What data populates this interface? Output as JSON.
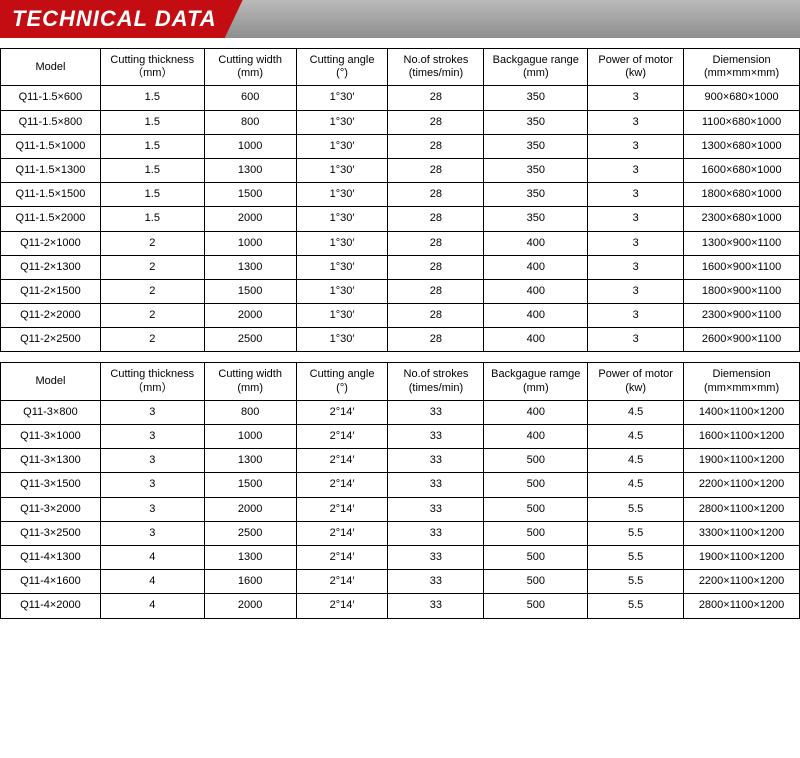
{
  "header": {
    "title": "TECHNICAL DATA"
  },
  "table1": {
    "columns": [
      [
        "Model",
        ""
      ],
      [
        "Cutting thickness",
        "（mm）"
      ],
      [
        "Cutting width",
        "(mm)"
      ],
      [
        "Cutting angle",
        "(°)"
      ],
      [
        "No.of strokes",
        "(times/min)"
      ],
      [
        "Backgague range",
        "(mm)"
      ],
      [
        "Power of motor",
        "(kw)"
      ],
      [
        "Diemension",
        "(mm×mm×mm)"
      ]
    ],
    "rows": [
      [
        "Q11-1.5×600",
        "1.5",
        "600",
        "1°30′",
        "28",
        "350",
        "3",
        "900×680×1000"
      ],
      [
        "Q11-1.5×800",
        "1.5",
        "800",
        "1°30′",
        "28",
        "350",
        "3",
        "1100×680×1000"
      ],
      [
        "Q11-1.5×1000",
        "1.5",
        "1000",
        "1°30′",
        "28",
        "350",
        "3",
        "1300×680×1000"
      ],
      [
        "Q11-1.5×1300",
        "1.5",
        "1300",
        "1°30′",
        "28",
        "350",
        "3",
        "1600×680×1000"
      ],
      [
        "Q11-1.5×1500",
        "1.5",
        "1500",
        "1°30′",
        "28",
        "350",
        "3",
        "1800×680×1000"
      ],
      [
        "Q11-1.5×2000",
        "1.5",
        "2000",
        "1°30′",
        "28",
        "350",
        "3",
        "2300×680×1000"
      ],
      [
        "Q11-2×1000",
        "2",
        "1000",
        "1°30′",
        "28",
        "400",
        "3",
        "1300×900×1100"
      ],
      [
        "Q11-2×1300",
        "2",
        "1300",
        "1°30′",
        "28",
        "400",
        "3",
        "1600×900×1100"
      ],
      [
        "Q11-2×1500",
        "2",
        "1500",
        "1°30′",
        "28",
        "400",
        "3",
        "1800×900×1100"
      ],
      [
        "Q11-2×2000",
        "2",
        "2000",
        "1°30′",
        "28",
        "400",
        "3",
        "2300×900×1100"
      ],
      [
        "Q11-2×2500",
        "2",
        "2500",
        "1°30′",
        "28",
        "400",
        "3",
        "2600×900×1100"
      ]
    ]
  },
  "table2": {
    "columns": [
      [
        "Model",
        ""
      ],
      [
        "Cutting thickness",
        "（mm）"
      ],
      [
        "Cutting width",
        "(mm)"
      ],
      [
        "Cutting angle",
        "(°)"
      ],
      [
        "No.of strokes",
        "(times/min)"
      ],
      [
        "Backgague ramge",
        "(mm)"
      ],
      [
        "Power of motor",
        "(kw)"
      ],
      [
        "Diemension",
        "(mm×mm×mm)"
      ]
    ],
    "rows": [
      [
        "Q11-3×800",
        "3",
        "800",
        "2°14′",
        "33",
        "400",
        "4.5",
        "1400×1100×1200"
      ],
      [
        "Q11-3×1000",
        "3",
        "1000",
        "2°14′",
        "33",
        "400",
        "4.5",
        "1600×1100×1200"
      ],
      [
        "Q11-3×1300",
        "3",
        "1300",
        "2°14′",
        "33",
        "500",
        "4.5",
        "1900×1100×1200"
      ],
      [
        "Q11-3×1500",
        "3",
        "1500",
        "2°14′",
        "33",
        "500",
        "4.5",
        "2200×1100×1200"
      ],
      [
        "Q11-3×2000",
        "3",
        "2000",
        "2°14′",
        "33",
        "500",
        "5.5",
        "2800×1100×1200"
      ],
      [
        "Q11-3×2500",
        "3",
        "2500",
        "2°14′",
        "33",
        "500",
        "5.5",
        "3300×1100×1200"
      ],
      [
        "Q11-4×1300",
        "4",
        "1300",
        "2°14′",
        "33",
        "500",
        "5.5",
        "1900×1100×1200"
      ],
      [
        "Q11-4×1600",
        "4",
        "1600",
        "2°14′",
        "33",
        "500",
        "5.5",
        "2200×1100×1200"
      ],
      [
        "Q11-4×2000",
        "4",
        "2000",
        "2°14′",
        "33",
        "500",
        "5.5",
        "2800×1100×1200"
      ]
    ]
  }
}
